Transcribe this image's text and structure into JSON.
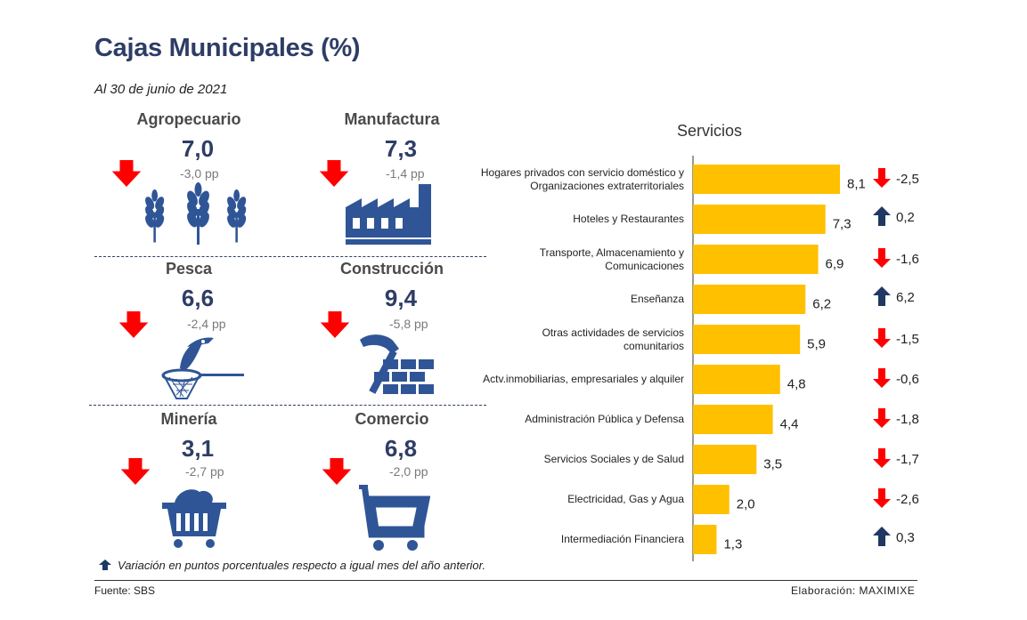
{
  "title": "Cajas Municipales (%)",
  "subtitle": "Al 30 de junio de 2021",
  "sectors": [
    {
      "name": "Agropecuario",
      "value": "7,0",
      "change": "-3,0",
      "unit": "pp",
      "direction": "down",
      "icon": "wheat-icon"
    },
    {
      "name": "Manufactura",
      "value": "7,3",
      "change": "-1,4",
      "unit": "pp",
      "direction": "down",
      "icon": "factory-icon"
    },
    {
      "name": "Pesca",
      "value": "6,6",
      "change": "-2,4",
      "unit": "pp",
      "direction": "down",
      "icon": "fishing-net-icon"
    },
    {
      "name": "Construcción",
      "value": "9,4",
      "change": "-5,8",
      "unit": "pp",
      "direction": "down",
      "icon": "hammer-bricks-icon"
    },
    {
      "name": "Minería",
      "value": "3,1",
      "change": "-2,7",
      "unit": "pp",
      "direction": "down",
      "icon": "mine-cart-icon"
    },
    {
      "name": "Comercio",
      "value": "6,8",
      "change": "-2,0",
      "unit": "pp",
      "direction": "down",
      "icon": "shopping-cart-icon"
    }
  ],
  "chart_data": {
    "type": "bar",
    "orientation": "horizontal",
    "title": "Servicios",
    "categories": [
      "Hogares privados con servicio doméstico y Organizaciones extraterritoriales",
      "Hoteles y Restaurantes",
      "Transporte, Almacenamiento y Comunicaciones",
      "Enseñanza",
      "Otras actividades de servicios comunitarios",
      "Actv.inmobiliarias, empresariales y alquiler",
      "Administración Pública y Defensa",
      "Servicios Sociales y de Salud",
      "Electricidad, Gas y Agua",
      "Intermediación Financiera"
    ],
    "label_lines": [
      [
        "Hogares privados con servicio doméstico y",
        "Organizaciones extraterritoriales"
      ],
      [
        "Hoteles y Restaurantes"
      ],
      [
        "Transporte, Almacenamiento y",
        "Comunicaciones"
      ],
      [
        "Enseñanza"
      ],
      [
        "Otras actividades de servicios",
        "comunitarios"
      ],
      [
        "Actv.inmobiliarias, empresariales y alquiler"
      ],
      [
        "Administración Pública y Defensa"
      ],
      [
        "Servicios Sociales y de Salud"
      ],
      [
        "Electricidad, Gas y Agua"
      ],
      [
        "Intermediación Financiera"
      ]
    ],
    "values": [
      8.1,
      7.3,
      6.9,
      6.2,
      5.9,
      4.8,
      4.4,
      3.5,
      2.0,
      1.3
    ],
    "value_labels": [
      "8,1",
      "7,3",
      "6,9",
      "6,2",
      "5,9",
      "4,8",
      "4,4",
      "3,5",
      "2,0",
      "1,3"
    ],
    "changes": [
      -2.5,
      0.2,
      -1.6,
      6.2,
      -1.5,
      -0.6,
      -1.8,
      -1.7,
      -2.6,
      0.3
    ],
    "change_labels": [
      "-2,5",
      "0,2",
      "-1,6",
      "6,2",
      "-1,5",
      "-0,6",
      "-1,8",
      "-1,7",
      "-2,6",
      "0,3"
    ],
    "xlim": [
      0,
      9
    ],
    "bar_color": "#ffc000",
    "up_color": "#1f3864",
    "down_color": "#ff0000"
  },
  "footnote": "Variación en puntos porcentuales respecto a igual mes del año anterior.",
  "source": "Fuente: SBS",
  "credit": "Elaboración: MAXIMIXE",
  "colors": {
    "navy": "#2e3d66",
    "icon_blue": "#2f5597",
    "red": "#ff0000",
    "gold": "#ffc000"
  }
}
